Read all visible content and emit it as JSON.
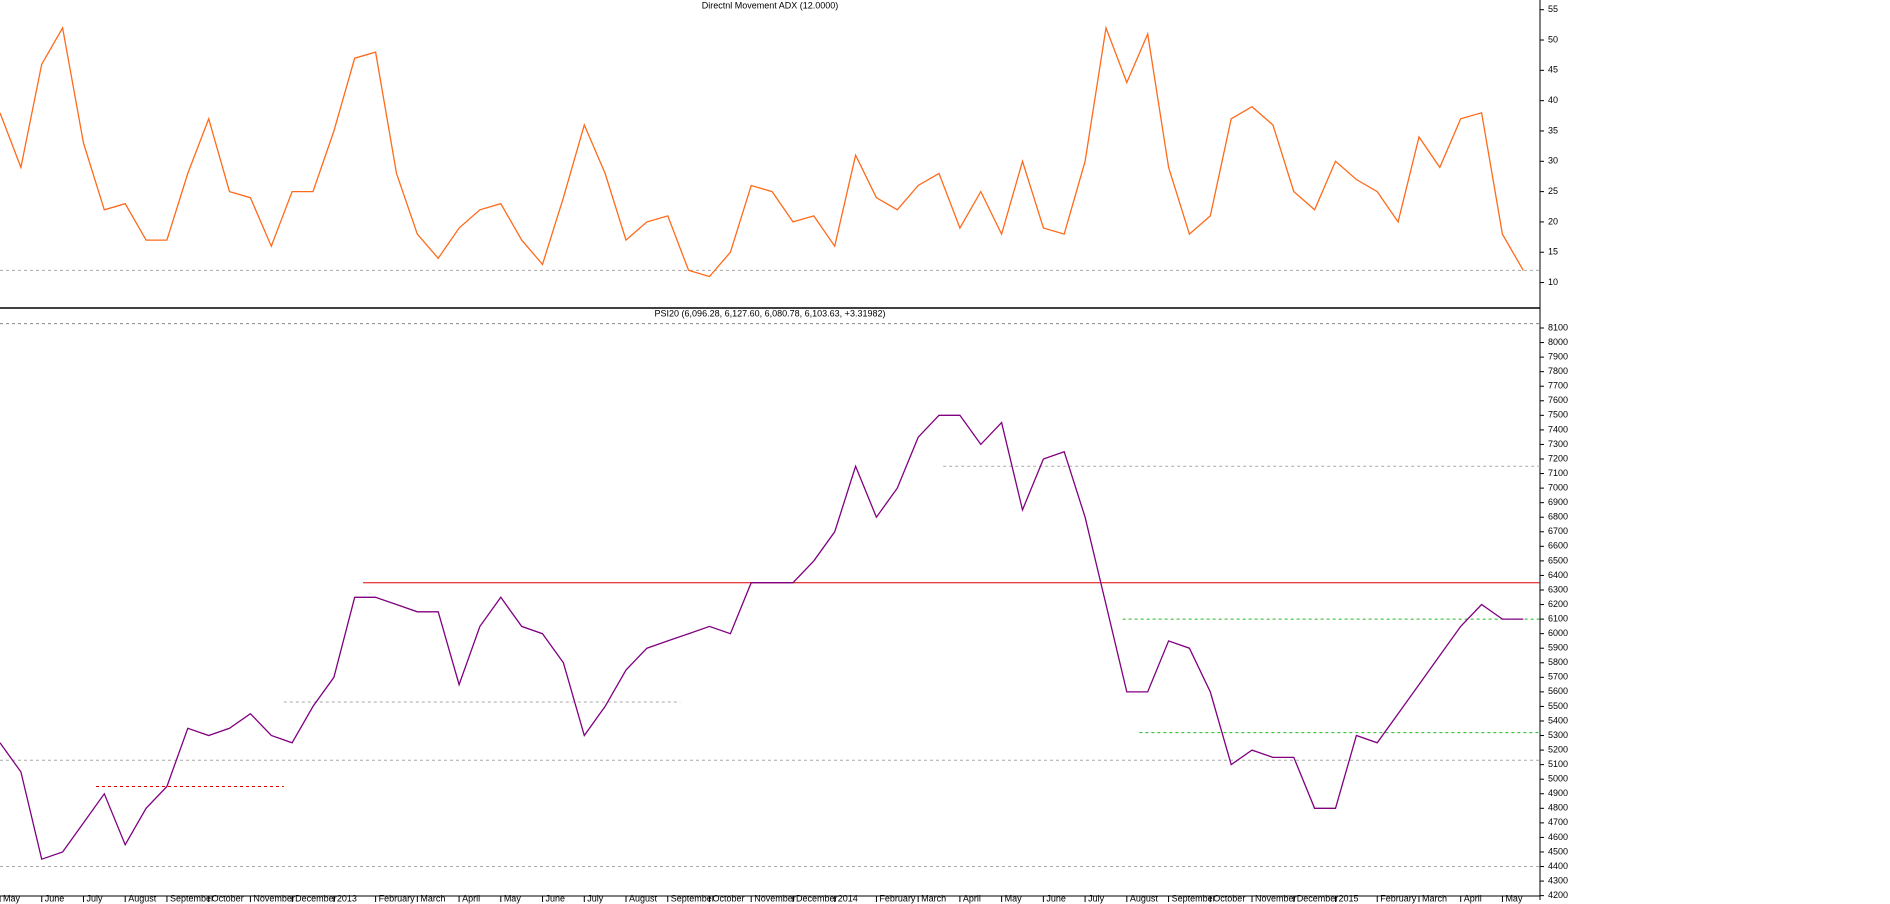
{
  "chart_data": [
    {
      "type": "line",
      "title": "Directnl Movement ADX (12.0000)",
      "color": "#ff6a1a",
      "x": [
        0,
        0.5,
        1,
        1.5,
        2,
        2.5,
        3,
        3.5,
        4,
        4.5,
        5,
        5.5,
        6,
        6.5,
        7,
        7.5,
        8,
        8.5,
        9,
        9.5,
        10,
        10.5,
        11,
        11.5,
        12,
        12.5,
        13,
        13.5,
        14,
        14.5,
        15,
        15.5,
        16,
        16.5,
        17,
        17.5,
        18,
        18.5,
        19,
        19.5,
        20,
        20.5,
        21,
        21.5,
        22,
        22.5,
        23,
        23.5,
        24,
        24.5,
        25,
        25.5,
        26,
        26.5,
        27,
        27.5,
        28,
        28.5,
        29,
        29.5,
        30,
        30.5,
        31,
        31.5,
        32,
        32.5,
        33,
        33.5,
        34,
        34.5,
        35,
        35.5,
        36,
        36.5
      ],
      "values": [
        38,
        29,
        46,
        52,
        33,
        22,
        23,
        17,
        17,
        28,
        37,
        25,
        24,
        16,
        25,
        25,
        35,
        47,
        48,
        28,
        18,
        14,
        19,
        22,
        23,
        17,
        13,
        24,
        36,
        28,
        17,
        20,
        21,
        12,
        11,
        15,
        26,
        25,
        20,
        21,
        16,
        31,
        24,
        22,
        26,
        28,
        19,
        25,
        18,
        30,
        19,
        18,
        30,
        52,
        43,
        51,
        29,
        18,
        21,
        37,
        39,
        36,
        25,
        22,
        30,
        27,
        25,
        20,
        34,
        29,
        37,
        38,
        18,
        12
      ],
      "xlim": [
        0,
        36.9
      ],
      "ylim": [
        6.3,
        56.6
      ],
      "yticks": [
        10,
        15,
        20,
        25,
        30,
        35,
        40,
        45,
        50,
        55
      ],
      "lines": [
        {
          "y": 12,
          "color": "#aaaaaa",
          "dash": true,
          "x": [
            0,
            36.9
          ]
        }
      ]
    },
    {
      "type": "line",
      "title": "PSI20 (6,096.28, 6,127.60, 6,080.78, 6,103.63, +3.31982)",
      "color": "#800080",
      "x": [
        0,
        0.5,
        1,
        1.5,
        2,
        2.5,
        3,
        3.5,
        4,
        4.5,
        5,
        5.5,
        6,
        6.5,
        7,
        7.5,
        8,
        8.5,
        9,
        9.5,
        10,
        10.5,
        11,
        11.5,
        12,
        12.5,
        13,
        13.5,
        14,
        14.5,
        15,
        15.5,
        16,
        16.5,
        17,
        17.5,
        18,
        18.5,
        19,
        19.5,
        20,
        20.5,
        21,
        21.5,
        22,
        22.5,
        23,
        23.5,
        24,
        24.5,
        25,
        25.5,
        26,
        26.5,
        27,
        27.5,
        28,
        28.5,
        29,
        29.5,
        30,
        30.5,
        31,
        31.5,
        32,
        32.5,
        33,
        33.5,
        34,
        34.5,
        35,
        35.5,
        36,
        36.5
      ],
      "values": [
        5250,
        5050,
        4450,
        4500,
        4700,
        4900,
        4550,
        4800,
        4950,
        5350,
        5300,
        5350,
        5450,
        5300,
        5250,
        5500,
        5700,
        6250,
        6250,
        6200,
        6150,
        6150,
        5650,
        6050,
        6250,
        6050,
        6000,
        5800,
        5300,
        5500,
        5750,
        5900,
        5950,
        6000,
        6050,
        6000,
        6350,
        6350,
        6350,
        6500,
        6700,
        7150,
        6800,
        7000,
        7350,
        7500,
        7500,
        7300,
        7450,
        6850,
        7200,
        7250,
        6800,
        6200,
        5600,
        5600,
        5950,
        5900,
        5600,
        5100,
        5200,
        5150,
        5150,
        4800,
        4800,
        5300,
        5250,
        5450,
        5650,
        5850,
        6050,
        6200,
        6100,
        6100
      ],
      "xlim": [
        0,
        36.9
      ],
      "ylim": [
        4170,
        8210
      ],
      "yticks": [
        4200,
        4300,
        4400,
        4500,
        4600,
        4700,
        4800,
        4900,
        5000,
        5100,
        5200,
        5300,
        5400,
        5500,
        5600,
        5700,
        5800,
        5900,
        6000,
        6100,
        6200,
        6300,
        6400,
        6500,
        6600,
        6700,
        6800,
        6900,
        7000,
        7100,
        7200,
        7300,
        7400,
        7500,
        7600,
        7700,
        7800,
        7900,
        8000,
        8100
      ],
      "xticks": [
        {
          "value": 0,
          "label": "May"
        },
        {
          "value": 1,
          "label": "June"
        },
        {
          "value": 2,
          "label": "July"
        },
        {
          "value": 3,
          "label": "August"
        },
        {
          "value": 4,
          "label": "September"
        },
        {
          "value": 5,
          "label": "October"
        },
        {
          "value": 6,
          "label": "November"
        },
        {
          "value": 7,
          "label": "December"
        },
        {
          "value": 8,
          "label": "2013"
        },
        {
          "value": 9,
          "label": "February"
        },
        {
          "value": 10,
          "label": "March"
        },
        {
          "value": 11,
          "label": "April"
        },
        {
          "value": 12,
          "label": "May"
        },
        {
          "value": 13,
          "label": "June"
        },
        {
          "value": 14,
          "label": "July"
        },
        {
          "value": 15,
          "label": "August"
        },
        {
          "value": 16,
          "label": "September"
        },
        {
          "value": 17,
          "label": "October"
        },
        {
          "value": 18,
          "label": "November"
        },
        {
          "value": 19,
          "label": "December"
        },
        {
          "value": 20,
          "label": "2014"
        },
        {
          "value": 21,
          "label": "February"
        },
        {
          "value": 22,
          "label": "March"
        },
        {
          "value": 23,
          "label": "April"
        },
        {
          "value": 24,
          "label": "May"
        },
        {
          "value": 25,
          "label": "June"
        },
        {
          "value": 26,
          "label": "July"
        },
        {
          "value": 27,
          "label": "August"
        },
        {
          "value": 28,
          "label": "September"
        },
        {
          "value": 29,
          "label": "October"
        },
        {
          "value": 30,
          "label": "November"
        },
        {
          "value": 31,
          "label": "December"
        },
        {
          "value": 32,
          "label": "2015"
        },
        {
          "value": 33,
          "label": "February"
        },
        {
          "value": 34,
          "label": "March"
        },
        {
          "value": 35,
          "label": "April"
        },
        {
          "value": 36,
          "label": "May"
        }
      ],
      "lines": [
        {
          "y": 8130,
          "color": "#888888",
          "dash": true,
          "x": [
            0,
            36.9
          ]
        },
        {
          "y": 6350,
          "color": "#e00000",
          "dash": false,
          "x": [
            8.7,
            36.9
          ]
        },
        {
          "y": 4950,
          "color": "#e00000",
          "dash": true,
          "x": [
            2.3,
            6.8
          ]
        },
        {
          "y": 5530,
          "color": "#aaaaaa",
          "dash": true,
          "x": [
            6.8,
            16.3
          ]
        },
        {
          "y": 5130,
          "color": "#aaaaaa",
          "dash": true,
          "x": [
            0,
            36.9
          ]
        },
        {
          "y": 4400,
          "color": "#aaaaaa",
          "dash": true,
          "x": [
            0,
            36.9
          ]
        },
        {
          "y": 7150,
          "color": "#aaaaaa",
          "dash": true,
          "x": [
            22.6,
            36.9
          ]
        },
        {
          "y": 6100,
          "color": "#22bb22",
          "dash": true,
          "x": [
            26.9,
            36.9
          ]
        },
        {
          "y": 5320,
          "color": "#22bb22",
          "dash": true,
          "x": [
            27.3,
            36.9
          ]
        }
      ]
    }
  ]
}
